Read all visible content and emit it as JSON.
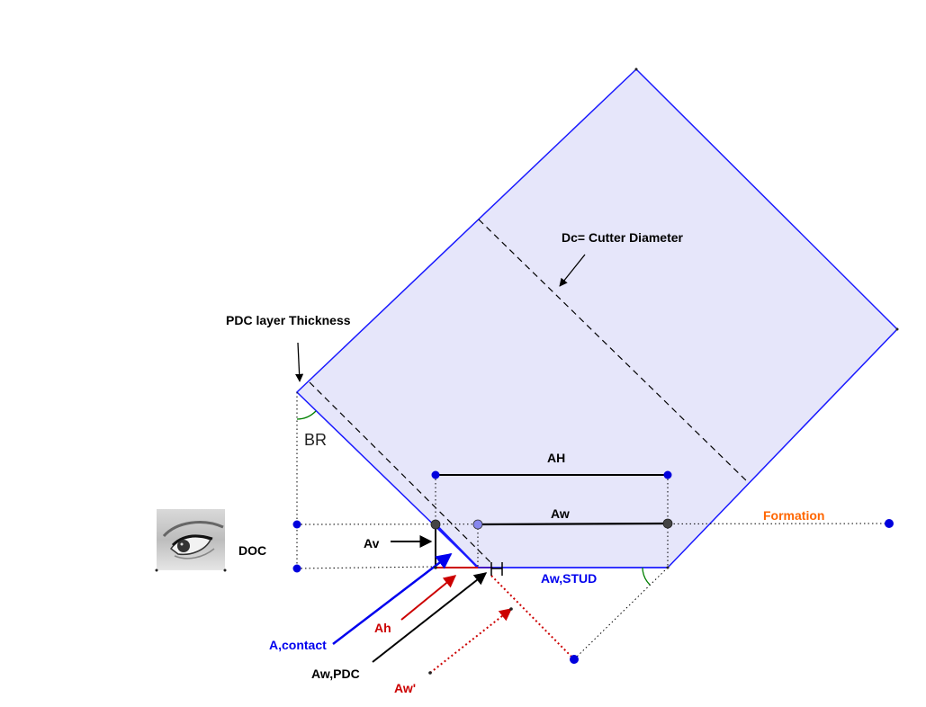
{
  "labels": {
    "cutter_diameter": "Dc= Cutter Diameter",
    "pdc_thickness": "PDC layer Thickness",
    "back_rake": "BR",
    "ah_upper": "AH",
    "aw_upper": "Aw",
    "formation": "Formation",
    "doc": "DOC",
    "av": "Av",
    "aw_stud": "Aw,STUD",
    "ah_lower": "Ah",
    "a_contact": "A,contact",
    "aw_pdc": "Aw,PDC",
    "aw_prime": "Aw'"
  },
  "colors": {
    "cutter_fill": "#e6e6fa",
    "cutter_edge": "#1a1aff",
    "black": "#000000",
    "red": "#cc0000",
    "blue": "#0000ee",
    "orange": "#ff6600",
    "point_blue": "#0000dd",
    "point_dark": "#444444",
    "point_light": "#8888ee",
    "angle_green": "#008000"
  },
  "icons": {
    "viewer": "eye-icon"
  }
}
